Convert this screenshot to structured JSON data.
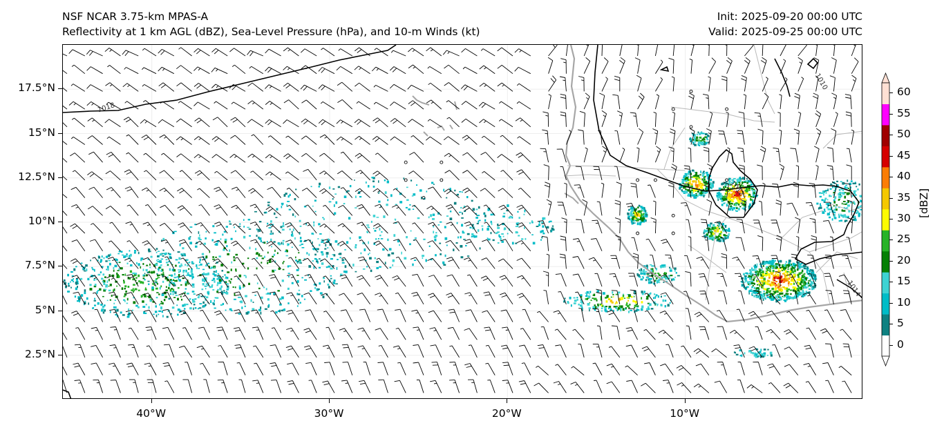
{
  "header": {
    "title_line1": "NSF NCAR 3.75-km MPAS-A",
    "title_line2": "Reflectivity at 1 km AGL (dBZ), Sea-Level Pressure (hPa), and 10-m Winds (kt)",
    "init": "Init: 2025-09-20 00:00 UTC",
    "valid": "Valid: 2025-09-25 00:00 UTC"
  },
  "map": {
    "lon_range": [
      -45,
      0
    ],
    "lat_range": [
      0,
      20
    ],
    "y_ticks": [
      {
        "label": "17.5°N",
        "lat": 17.5
      },
      {
        "label": "15°N",
        "lat": 15
      },
      {
        "label": "12.5°N",
        "lat": 12.5
      },
      {
        "label": "10°N",
        "lat": 10
      },
      {
        "label": "7.5°N",
        "lat": 7.5
      },
      {
        "label": "5°N",
        "lat": 5
      },
      {
        "label": "2.5°N",
        "lat": 2.5
      }
    ],
    "x_ticks": [
      {
        "label": "40°W",
        "lon": -40
      },
      {
        "label": "30°W",
        "lon": -30
      },
      {
        "label": "20°W",
        "lon": -20
      },
      {
        "label": "10°W",
        "lon": -10
      }
    ],
    "isobar_labels": [
      {
        "text": "1018",
        "lon": -43,
        "lat": 16.2
      },
      {
        "text": "1010",
        "lon": -2.7,
        "lat": 18.3
      },
      {
        "text": "1014",
        "lon": -0.9,
        "lat": 6.6
      },
      {
        "text": "1012",
        "lon": -7.5,
        "lat": 12.2
      }
    ],
    "colors": {
      "coast": "#a6a6a6",
      "border": "#b8b8b8",
      "isobar": "#000000"
    }
  },
  "colorbar": {
    "title": "[dBZ]",
    "labels": [
      "0",
      "5",
      "10",
      "15",
      "20",
      "25",
      "30",
      "35",
      "40",
      "45",
      "50",
      "55",
      "60"
    ],
    "colors": [
      "#ffffff",
      "#0e8181",
      "#00bcc7",
      "#3ed3d3",
      "#058005",
      "#27b327",
      "#fcfc00",
      "#f5c800",
      "#fb7d05",
      "#d60000",
      "#a00000",
      "#ff00ff",
      "#ffe0d4"
    ]
  }
}
